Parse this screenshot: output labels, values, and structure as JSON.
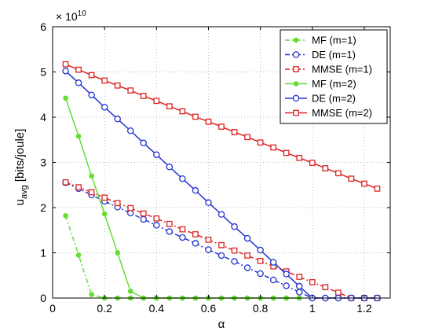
{
  "chart_data": {
    "type": "line",
    "title": "",
    "xlabel": "α",
    "ylabel": "u",
    "ylabel_sub": "avg",
    "ylabel_unit": "[bits/joule]",
    "y_exponent": "× 10",
    "y_exponent_power": "10",
    "xlim": [
      0,
      1.3
    ],
    "ylim": [
      0,
      6
    ],
    "x_ticks": [
      "0",
      "0.2",
      "0.4",
      "0.6",
      "0.8",
      "1",
      "1.2"
    ],
    "y_ticks": [
      "0",
      "1",
      "2",
      "3",
      "4",
      "5",
      "6"
    ],
    "grid": true,
    "legend_position": "top-right",
    "series": [
      {
        "name": "MF (m=1)",
        "color": "#66dd33",
        "dash": "dashdot",
        "marker": "dot",
        "x": [
          0.05,
          0.1,
          0.15,
          0.2,
          0.25,
          0.3,
          0.35,
          0.4,
          0.45,
          0.5,
          0.55,
          0.6,
          0.65,
          0.7,
          0.75,
          0.8,
          0.85,
          0.9,
          0.95
        ],
        "y": [
          1.82,
          0.95,
          0.08,
          0,
          0,
          0,
          0,
          0,
          0,
          0,
          0,
          0,
          0,
          0,
          0,
          0,
          0,
          0,
          0
        ]
      },
      {
        "name": "DE (m=1)",
        "color": "#2233cc",
        "dash": "dashdot",
        "marker": "circle",
        "x": [
          0.05,
          0.1,
          0.15,
          0.2,
          0.25,
          0.3,
          0.35,
          0.4,
          0.45,
          0.5,
          0.55,
          0.6,
          0.65,
          0.7,
          0.75,
          0.8,
          0.85,
          0.9,
          0.95,
          1.0,
          1.05,
          1.1,
          1.15,
          1.2,
          1.25
        ],
        "y": [
          2.55,
          2.42,
          2.28,
          2.14,
          2.01,
          1.88,
          1.74,
          1.61,
          1.47,
          1.34,
          1.21,
          1.07,
          0.94,
          0.81,
          0.67,
          0.54,
          0.4,
          0.27,
          0.13,
          0,
          0,
          0,
          0,
          0,
          0
        ]
      },
      {
        "name": "MMSE (m=1)",
        "color": "#dd2222",
        "dash": "dashdot",
        "marker": "square",
        "x": [
          0.05,
          0.1,
          0.15,
          0.2,
          0.25,
          0.3,
          0.35,
          0.4,
          0.45,
          0.5,
          0.55,
          0.6,
          0.65,
          0.7,
          0.75,
          0.8,
          0.85,
          0.9,
          0.95,
          1.0,
          1.05,
          1.1,
          1.15,
          1.2,
          1.25
        ],
        "y": [
          2.56,
          2.45,
          2.34,
          2.22,
          2.1,
          1.99,
          1.87,
          1.76,
          1.64,
          1.52,
          1.41,
          1.29,
          1.17,
          1.05,
          0.94,
          0.82,
          0.7,
          0.59,
          0.47,
          0.35,
          0.24,
          0.12,
          0,
          0,
          0
        ]
      },
      {
        "name": "MF (m=2)",
        "color": "#66dd33",
        "dash": "solid",
        "marker": "dot",
        "x": [
          0.05,
          0.1,
          0.15,
          0.2,
          0.25,
          0.3,
          0.35,
          0.4,
          0.45,
          0.5,
          0.55,
          0.6,
          0.65,
          0.7,
          0.75,
          0.8,
          0.85,
          0.9,
          0.95
        ],
        "y": [
          4.42,
          3.58,
          2.7,
          1.86,
          1.0,
          0.15,
          0,
          0,
          0,
          0,
          0,
          0,
          0,
          0,
          0,
          0,
          0,
          0,
          0
        ]
      },
      {
        "name": "DE (m=2)",
        "color": "#2233cc",
        "dash": "solid",
        "marker": "circle",
        "x": [
          0.05,
          0.1,
          0.15,
          0.2,
          0.25,
          0.3,
          0.35,
          0.4,
          0.45,
          0.5,
          0.55,
          0.6,
          0.65,
          0.7,
          0.75,
          0.8,
          0.85,
          0.9,
          0.95,
          1.0,
          1.05,
          1.1,
          1.15,
          1.2,
          1.25
        ],
        "y": [
          5.02,
          4.76,
          4.49,
          4.22,
          3.96,
          3.7,
          3.43,
          3.17,
          2.9,
          2.64,
          2.38,
          2.11,
          1.85,
          1.58,
          1.32,
          1.06,
          0.79,
          0.53,
          0.26,
          0,
          0,
          0,
          0,
          0,
          0
        ]
      },
      {
        "name": "MMSE (m=2)",
        "color": "#dd2222",
        "dash": "solid",
        "marker": "square",
        "x": [
          0.05,
          0.1,
          0.15,
          0.2,
          0.25,
          0.3,
          0.35,
          0.4,
          0.45,
          0.5,
          0.55,
          0.6,
          0.65,
          0.7,
          0.75,
          0.8,
          0.85,
          0.9,
          0.95,
          1.0,
          1.05,
          1.1,
          1.15,
          1.2,
          1.25
        ],
        "y": [
          5.17,
          5.05,
          4.93,
          4.81,
          4.7,
          4.59,
          4.47,
          4.36,
          4.24,
          4.13,
          4.01,
          3.9,
          3.79,
          3.67,
          3.56,
          3.44,
          3.33,
          3.21,
          3.1,
          2.99,
          2.87,
          2.76,
          2.64,
          2.53,
          2.42
        ]
      }
    ]
  }
}
